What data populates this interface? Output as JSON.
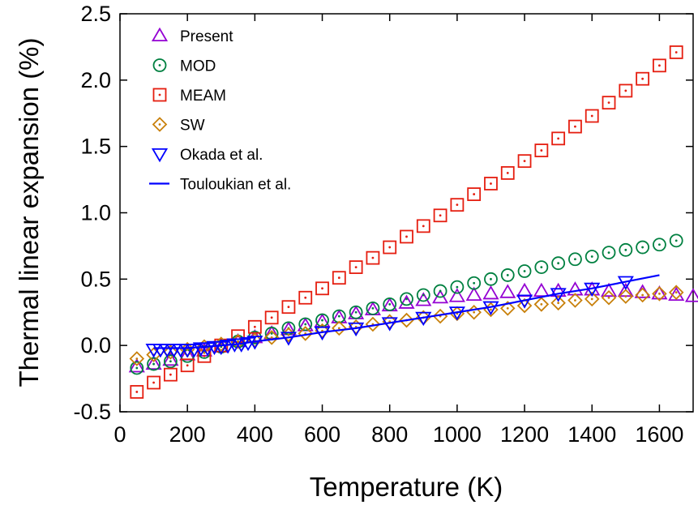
{
  "chart_data": {
    "type": "scatter",
    "xlabel": "Temperature (K)",
    "ylabel": "Thermal linear expansion (%)",
    "xlim": [
      0,
      1700
    ],
    "ylim": [
      -0.5,
      2.5
    ],
    "xticks": [
      0,
      200,
      400,
      600,
      800,
      1000,
      1200,
      1400,
      1600
    ],
    "yticks": [
      -0.5,
      0.0,
      0.5,
      1.0,
      1.5,
      2.0,
      2.5
    ],
    "ytick_labels": [
      "-0.5",
      "0.0",
      "0.5",
      "1.0",
      "1.5",
      "2.0",
      "2.5"
    ],
    "grid": false,
    "legend_position": "top-left",
    "series": [
      {
        "name": "Present",
        "marker": "triangle-up",
        "color": "#9400d3",
        "x": [
          50,
          100,
          150,
          200,
          250,
          300,
          350,
          400,
          450,
          500,
          550,
          600,
          650,
          700,
          750,
          800,
          850,
          900,
          950,
          1000,
          1050,
          1100,
          1150,
          1200,
          1250,
          1300,
          1350,
          1400,
          1450,
          1500,
          1550,
          1600,
          1650,
          1700
        ],
        "y": [
          -0.16,
          -0.14,
          -0.11,
          -0.07,
          -0.04,
          -0.01,
          0.03,
          0.06,
          0.09,
          0.12,
          0.15,
          0.18,
          0.21,
          0.24,
          0.27,
          0.3,
          0.32,
          0.34,
          0.36,
          0.37,
          0.38,
          0.39,
          0.4,
          0.41,
          0.41,
          0.41,
          0.42,
          0.42,
          0.41,
          0.41,
          0.4,
          0.39,
          0.38,
          0.37
        ]
      },
      {
        "name": "MOD",
        "marker": "circle-dot",
        "color": "#008040",
        "x": [
          50,
          100,
          150,
          200,
          250,
          300,
          350,
          400,
          450,
          500,
          550,
          600,
          650,
          700,
          750,
          800,
          850,
          900,
          950,
          1000,
          1050,
          1100,
          1150,
          1200,
          1250,
          1300,
          1350,
          1400,
          1450,
          1500,
          1550,
          1600,
          1650
        ],
        "y": [
          -0.17,
          -0.14,
          -0.12,
          -0.08,
          -0.05,
          -0.01,
          0.03,
          0.06,
          0.09,
          0.13,
          0.16,
          0.19,
          0.22,
          0.25,
          0.28,
          0.31,
          0.35,
          0.38,
          0.41,
          0.44,
          0.47,
          0.5,
          0.53,
          0.56,
          0.59,
          0.62,
          0.65,
          0.67,
          0.7,
          0.72,
          0.74,
          0.76,
          0.79
        ]
      },
      {
        "name": "MEAM",
        "marker": "square-dot",
        "color": "#e51e10",
        "x": [
          50,
          100,
          150,
          200,
          250,
          300,
          350,
          400,
          450,
          500,
          550,
          600,
          650,
          700,
          750,
          800,
          850,
          900,
          950,
          1000,
          1050,
          1100,
          1150,
          1200,
          1250,
          1300,
          1350,
          1400,
          1450,
          1500,
          1550,
          1600,
          1650
        ],
        "y": [
          -0.35,
          -0.28,
          -0.22,
          -0.15,
          -0.08,
          0.0,
          0.07,
          0.14,
          0.21,
          0.29,
          0.36,
          0.43,
          0.51,
          0.59,
          0.66,
          0.74,
          0.82,
          0.9,
          0.98,
          1.06,
          1.14,
          1.22,
          1.3,
          1.39,
          1.47,
          1.56,
          1.65,
          1.73,
          1.83,
          1.92,
          2.01,
          2.11,
          2.21
        ]
      },
      {
        "name": "SW",
        "marker": "diamond-dot",
        "color": "#c8800a",
        "x": [
          50,
          100,
          150,
          200,
          250,
          300,
          350,
          400,
          450,
          500,
          550,
          600,
          650,
          700,
          750,
          800,
          850,
          900,
          950,
          1000,
          1050,
          1100,
          1150,
          1200,
          1250,
          1300,
          1350,
          1400,
          1450,
          1500,
          1550,
          1600,
          1650
        ],
        "y": [
          -0.1,
          -0.07,
          -0.05,
          -0.03,
          -0.01,
          0.01,
          0.03,
          0.04,
          0.06,
          0.08,
          0.09,
          0.11,
          0.13,
          0.14,
          0.16,
          0.18,
          0.19,
          0.21,
          0.22,
          0.24,
          0.25,
          0.27,
          0.28,
          0.3,
          0.31,
          0.32,
          0.34,
          0.35,
          0.36,
          0.37,
          0.38,
          0.39,
          0.4
        ]
      },
      {
        "name": "Okada et al.",
        "marker": "triangle-down",
        "color": "#0000ff",
        "x": [
          100,
          120,
          140,
          160,
          180,
          200,
          220,
          240,
          260,
          280,
          300,
          320,
          340,
          360,
          380,
          400,
          500,
          600,
          700,
          800,
          900,
          1000,
          1100,
          1200,
          1300,
          1400,
          1500
        ],
        "y": [
          -0.03,
          -0.03,
          -0.03,
          -0.03,
          -0.03,
          -0.03,
          -0.03,
          -0.02,
          -0.02,
          -0.01,
          -0.01,
          0.0,
          0.01,
          0.01,
          0.02,
          0.03,
          0.06,
          0.1,
          0.13,
          0.17,
          0.21,
          0.25,
          0.29,
          0.34,
          0.39,
          0.43,
          0.48
        ]
      },
      {
        "name": "Touloukian et al.",
        "marker": "line",
        "color": "#0000ff",
        "x": [
          100,
          150,
          200,
          250,
          300,
          350,
          400,
          500,
          600,
          700,
          800,
          900,
          1000,
          1100,
          1200,
          1300,
          1400,
          1500,
          1600
        ],
        "y": [
          -0.02,
          -0.02,
          -0.02,
          -0.01,
          0.0,
          0.01,
          0.03,
          0.06,
          0.1,
          0.13,
          0.17,
          0.21,
          0.25,
          0.29,
          0.34,
          0.39,
          0.43,
          0.48,
          0.53
        ]
      }
    ]
  }
}
